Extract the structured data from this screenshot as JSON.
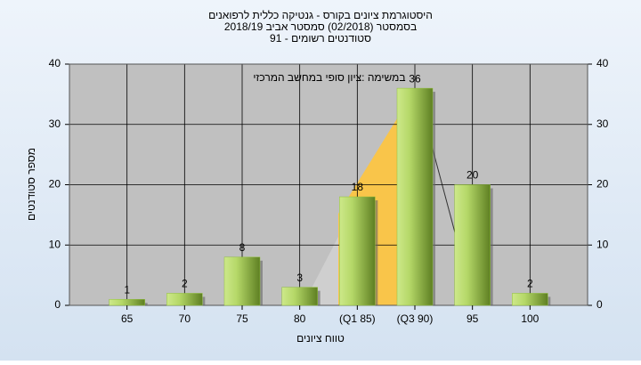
{
  "chart_data": {
    "type": "bar",
    "title": "היסטוגרמת ציונים בקורס - גנטיקה כללית לרפואנים",
    "subtitle": "בסמסטר  (02/2018)  סמסטר אביב 2018/19",
    "subtitle2": "סטודנטים רשומים - 91",
    "annotation": "במשימה :ציון סופי במחשב המרכזי",
    "x_label": "טווח ציונים",
    "y_label": "מספר סטודנטים",
    "categories": [
      "65",
      "70",
      "75",
      "80",
      "(Q1 85)",
      "(Q3 90)",
      "95",
      "100"
    ],
    "values": [
      1,
      2,
      8,
      3,
      18,
      36,
      20,
      2
    ],
    "color": "#8fbf3a",
    "ylim": [
      0,
      40
    ],
    "yticks": [
      0,
      10,
      20,
      30,
      40
    ],
    "y2lim": [
      0,
      40
    ],
    "y2ticks": [
      0,
      10,
      20,
      30,
      40
    ],
    "grid": true
  }
}
